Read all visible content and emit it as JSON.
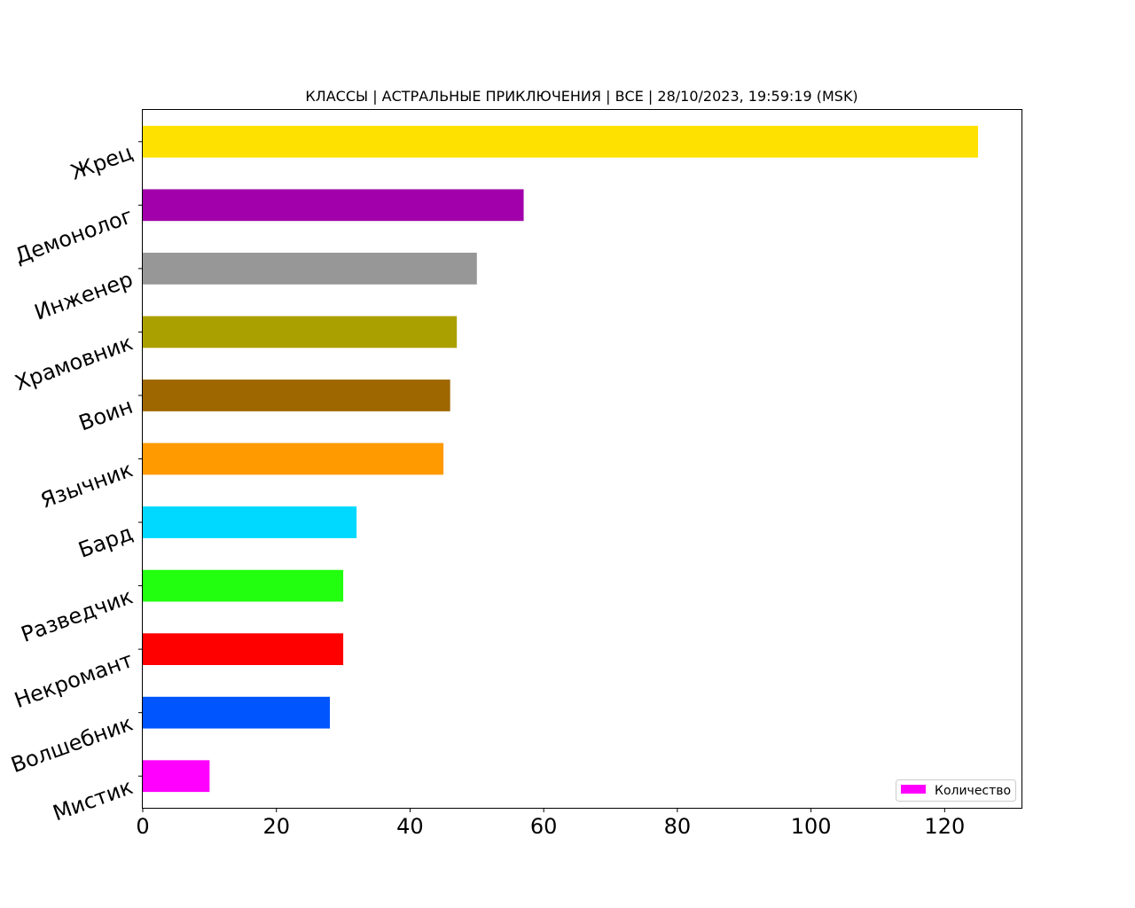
{
  "chart_data": {
    "type": "bar",
    "orientation": "horizontal",
    "title": "КЛАССЫ | АСТРАЛЬНЫЕ ПРИКЛЮЧЕНИЯ | ВСЕ | 28/10/2023, 19:59:19 (MSK)",
    "xlabel": "",
    "ylabel": "",
    "xlim": [
      0,
      131.5
    ],
    "x_ticks": [
      0,
      20,
      40,
      60,
      80,
      100,
      120
    ],
    "grid": false,
    "legend": {
      "placement": "lower-right",
      "entries": [
        {
          "label": "Количество",
          "color": "#ff00ff"
        }
      ]
    },
    "categories": [
      "Жрец",
      "Демонолог",
      "Инженер",
      "Храмовник",
      "Воин",
      "Язычник",
      "Бард",
      "Разведчик",
      "Некромант",
      "Волшебник",
      "Мистик"
    ],
    "values": [
      125,
      57,
      50,
      47,
      46,
      45,
      32,
      30,
      30,
      28,
      10
    ],
    "colors": [
      "#ffe100",
      "#a200aa",
      "#979797",
      "#aaa000",
      "#9e6700",
      "#ff9a00",
      "#00d9ff",
      "#22ff0f",
      "#ff0000",
      "#0055ff",
      "#ff00ff"
    ]
  }
}
